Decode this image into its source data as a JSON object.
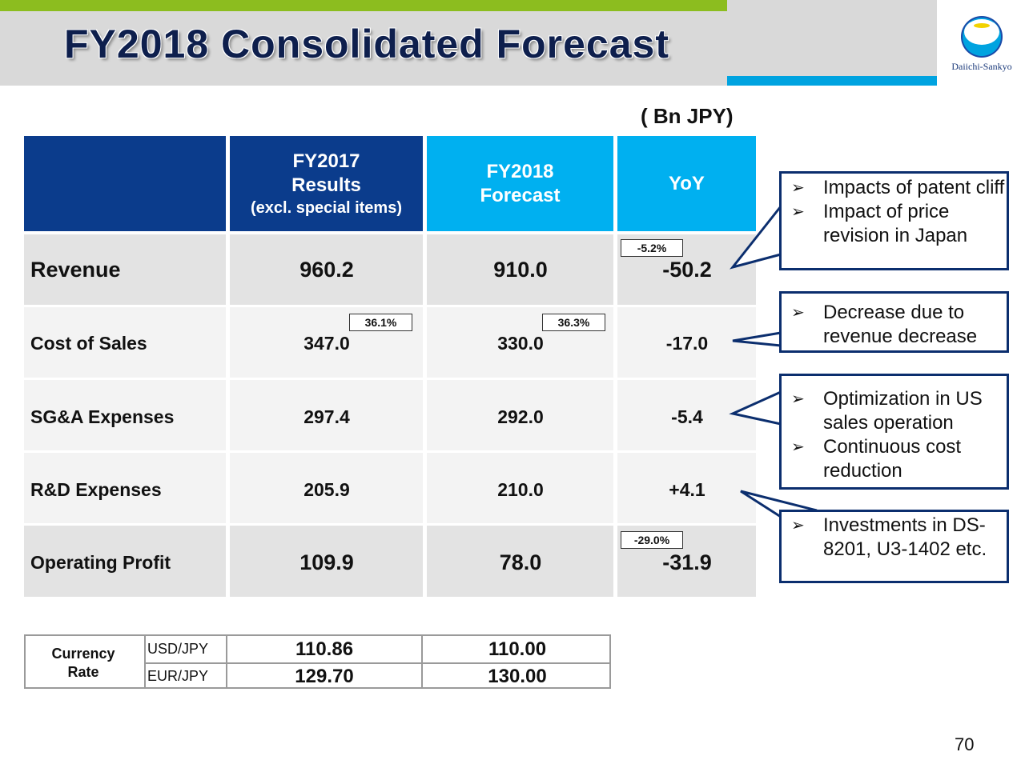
{
  "header": {
    "title": "FY2018 Consolidated Forecast",
    "logo_text": "Daiichi-Sankyo"
  },
  "unit_label": "( Bn JPY)",
  "table": {
    "columns": [
      {
        "line1": "FY2017",
        "line2": "Results",
        "line3": "(excl. special items)"
      },
      {
        "line1": "FY2018",
        "line2": "Forecast"
      },
      {
        "line1": "YoY"
      }
    ],
    "rows": [
      {
        "label": "Revenue",
        "fy2017": "960.2",
        "fy2018": "910.0",
        "yoy": "-50.2",
        "yoy_pct": "-5.2%"
      },
      {
        "label": "Cost of Sales",
        "fy2017": "347.0",
        "fy2018": "330.0",
        "yoy": "-17.0",
        "fy2017_ratio": "36.1%",
        "fy2018_ratio": "36.3%"
      },
      {
        "label": "SG&A Expenses",
        "fy2017": "297.4",
        "fy2018": "292.0",
        "yoy": "-5.4"
      },
      {
        "label": "R&D Expenses",
        "fy2017": "205.9",
        "fy2018": "210.0",
        "yoy": "+4.1"
      },
      {
        "label": "Operating Profit",
        "fy2017": "109.9",
        "fy2018": "78.0",
        "yoy": "-31.9",
        "yoy_pct": "-29.0%"
      }
    ]
  },
  "callouts": [
    {
      "items": [
        "Impacts of patent cliff",
        "Impact of price revision in Japan"
      ]
    },
    {
      "items": [
        "Decrease due to revenue decrease"
      ]
    },
    {
      "items": [
        "Optimization in US sales operation",
        "Continuous cost reduction"
      ]
    },
    {
      "items": [
        "Investments in DS-8201, U3-1402 etc."
      ]
    }
  ],
  "currency": {
    "label_line1": "Currency",
    "label_line2": "Rate",
    "rows": [
      {
        "pair": "USD/JPY",
        "fy2017": "110.86",
        "fy2018": "110.00"
      },
      {
        "pair": "EUR/JPY",
        "fy2017": "129.70",
        "fy2018": "130.00"
      }
    ]
  },
  "page_number": "70",
  "colors": {
    "header_dark_blue": "#0b3c8c",
    "header_light_blue": "#00b0f0",
    "accent_green": "#8cbd1f",
    "callout_border": "#0b2e6e"
  }
}
